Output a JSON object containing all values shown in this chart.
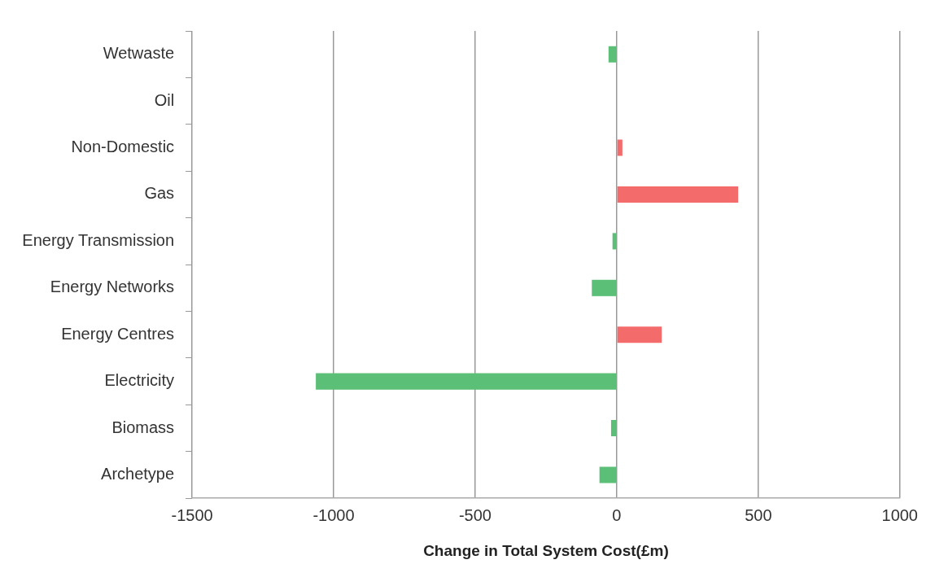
{
  "chart_data": {
    "type": "bar",
    "orientation": "horizontal",
    "xlabel": "Change in Total System Cost(£m)",
    "categories": [
      "Wetwaste",
      "Oil",
      "Non-Domestic",
      "Gas",
      "Energy Transmission",
      "Energy Networks",
      "Energy Centres",
      "Electricity",
      "Biomass",
      "Archetype"
    ],
    "values": [
      -29,
      0,
      20,
      429,
      -15,
      -88,
      159,
      -1063,
      -20,
      -61
    ],
    "colors": [
      "#5cbf77",
      "#5cbf77",
      "#f36b6b",
      "#f36b6b",
      "#5cbf77",
      "#5cbf77",
      "#f36b6b",
      "#5cbf77",
      "#5cbf77",
      "#5cbf77"
    ],
    "xlim": [
      -1500,
      1000
    ],
    "xticks": [
      -1500,
      -1000,
      -500,
      0,
      500,
      1000
    ],
    "grid": "x",
    "legend": false
  }
}
